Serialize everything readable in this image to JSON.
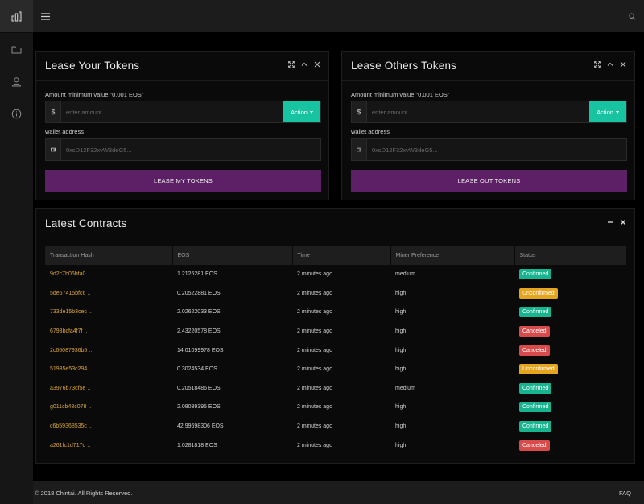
{
  "topbar": {},
  "lease_your": {
    "title": "Lease Your Tokens",
    "amount_label": "Amount minimum value \"0.001 EOS\"",
    "currency_symbol": "$",
    "amount_placeholder": "enter amount",
    "action_label": "Action",
    "wallet_label": "wallet address",
    "wallet_value": "0xsD12F32xvW3deG5...",
    "submit_label": "LEASE MY TOKENS"
  },
  "lease_others": {
    "title": "Lease Others Tokens",
    "amount_label": "Amount minimum value \"0.001 EOS\"",
    "currency_symbol": "$",
    "amount_placeholder": "enter amount",
    "action_label": "Action",
    "wallet_label": "wallet address",
    "wallet_value": "0xsD12F32xvW3deG5...",
    "submit_label": "LEASE OUT TOKENS"
  },
  "contracts": {
    "title": "Latest Contracts",
    "headers": [
      "Transaction Hash",
      "EOS",
      "Time",
      "Miner Preference",
      "Status"
    ],
    "rows": [
      {
        "hash": "9d2c7b06bfa0 ..",
        "eos": "1.2126281 EOS",
        "time": "2 minutes ago",
        "pref": "medium",
        "status": "Confirmed"
      },
      {
        "hash": "5de67415bfc6 ..",
        "eos": "0.20522881 EOS",
        "time": "2 minutes ago",
        "pref": "high",
        "status": "Unconfirmed"
      },
      {
        "hash": "733de15b3cec ..",
        "eos": "2.02622033 EOS",
        "time": "2 minutes ago",
        "pref": "high",
        "status": "Confirmed"
      },
      {
        "hash": "6793bcfa4f7f ..",
        "eos": "2.43220578 EOS",
        "time": "2 minutes ago",
        "pref": "high",
        "status": "Canceled"
      },
      {
        "hash": "2c66087936b5 ..",
        "eos": "14.01099978 EOS",
        "time": "2 minutes ago",
        "pref": "high",
        "status": "Canceled"
      },
      {
        "hash": "51935e53c294 ..",
        "eos": "0.3024534 EOS",
        "time": "2 minutes ago",
        "pref": "high",
        "status": "Unconfirmed"
      },
      {
        "hash": "a3976b73cf5e ..",
        "eos": "0.20518486 EOS",
        "time": "2 minutes ago",
        "pref": "medium",
        "status": "Confirmed"
      },
      {
        "hash": "g011cb48c078 ..",
        "eos": "2.08039395 EOS",
        "time": "2 minutes ago",
        "pref": "high",
        "status": "Confirmed"
      },
      {
        "hash": "c6b59368535c ..",
        "eos": "42.99698306 EOS",
        "time": "2 minutes ago",
        "pref": "high",
        "status": "Confirmed"
      },
      {
        "hash": "a261fc1d717d ..",
        "eos": "1.0281818 EOS",
        "time": "2 minutes ago",
        "pref": "high",
        "status": "Canceled"
      }
    ]
  },
  "status_colors": {
    "Confirmed": "#17b48f",
    "Unconfirmed": "#e5a51f",
    "Canceled": "#d94a4a"
  },
  "footer": {
    "copyright": "© 2018 Chintai. All Rights Reserved.",
    "faq": "FAQ"
  }
}
